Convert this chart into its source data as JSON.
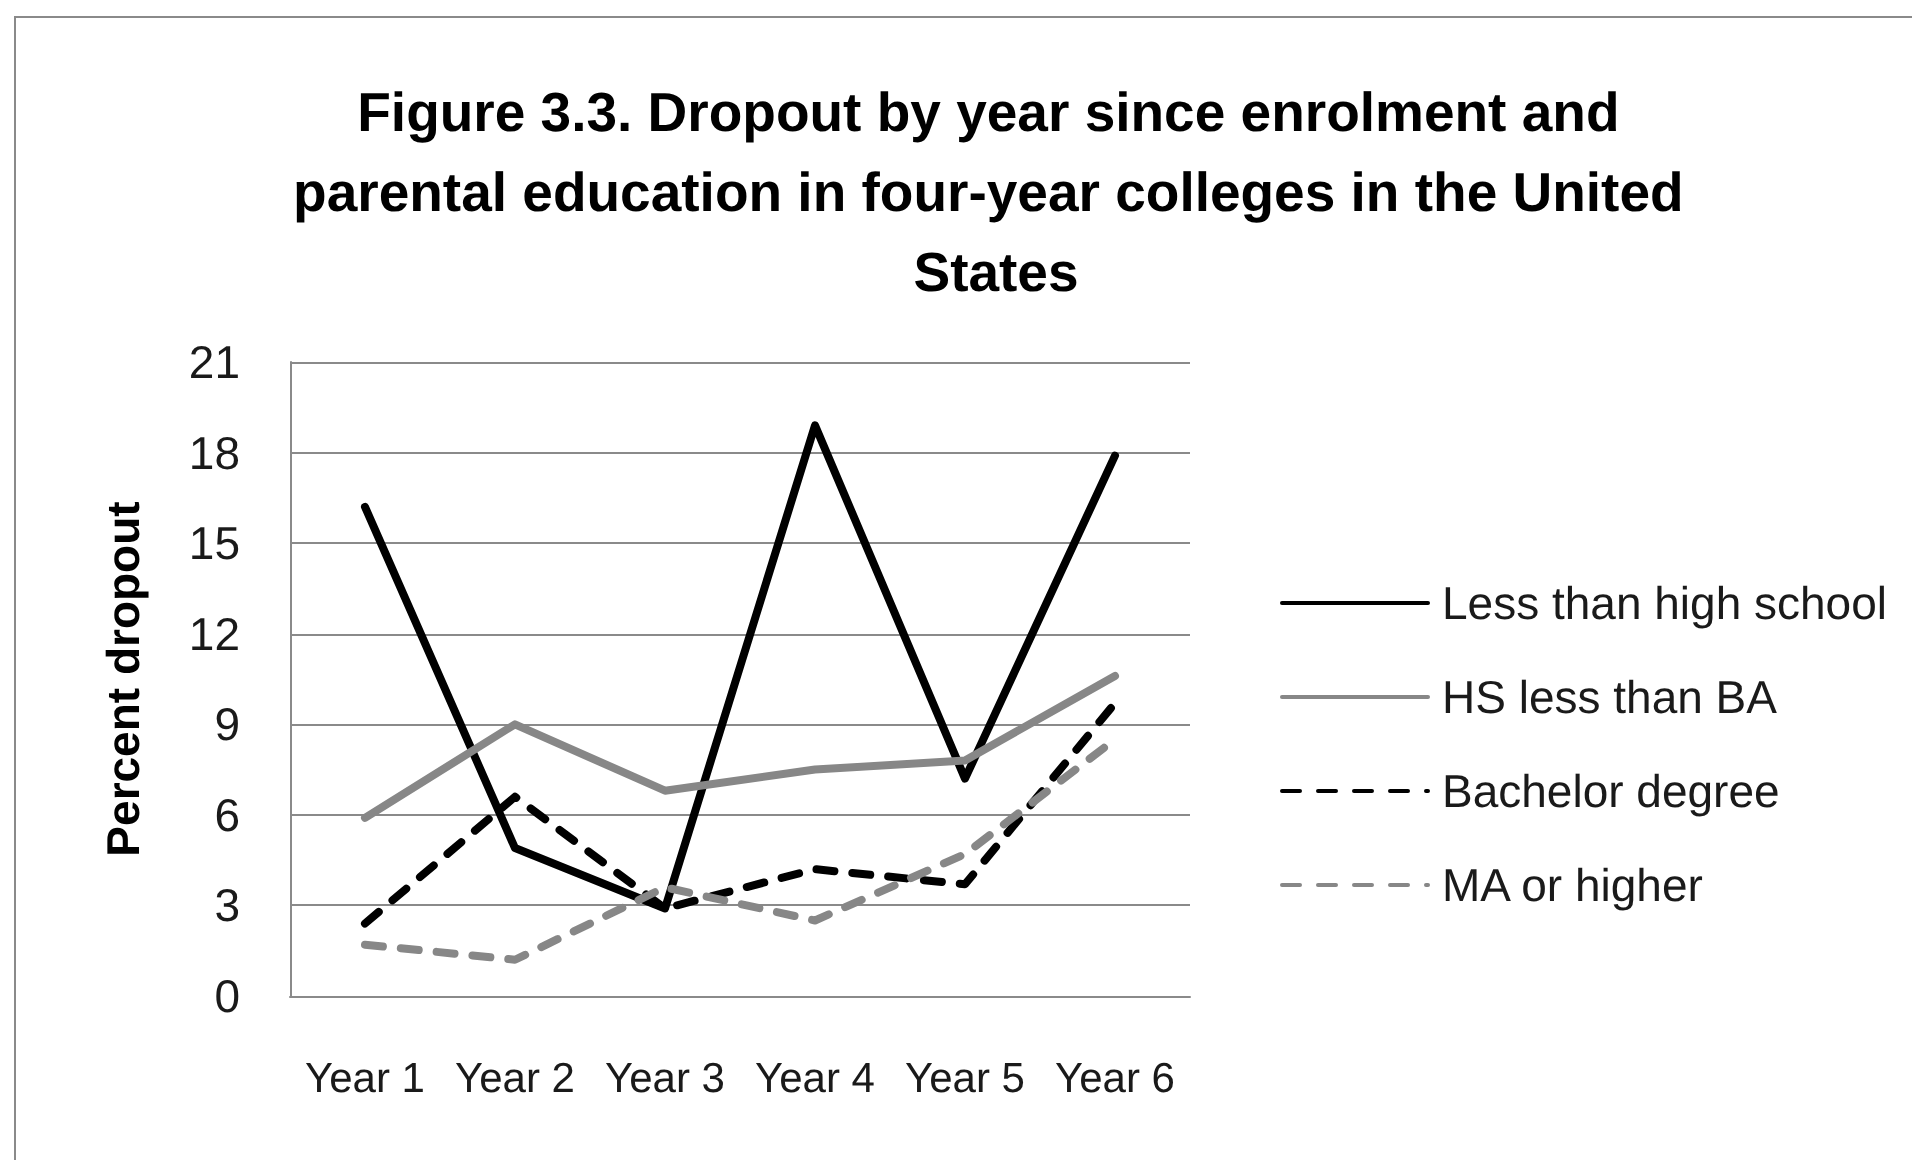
{
  "chart_data": {
    "type": "line",
    "title": "Figure 3.3. Dropout by year since enrolment and parental education in four-year colleges in the United States",
    "ylabel": "Percent dropout",
    "categories": [
      "Year 1",
      "Year 2",
      "Year 3",
      "Year 4",
      "Year 5",
      "Year 6"
    ],
    "series": [
      {
        "name": "Less than high school",
        "color": "#000000",
        "line_style": "solid",
        "values": [
          16.2,
          4.9,
          2.9,
          18.9,
          7.2,
          17.9
        ]
      },
      {
        "name": "HS less than BA",
        "color": "#878787",
        "line_style": "solid",
        "values": [
          5.9,
          9.0,
          6.8,
          7.5,
          7.8,
          10.6
        ]
      },
      {
        "name": "Bachelor degree",
        "color": "#000000",
        "line_style": "dashed",
        "values": [
          2.4,
          6.6,
          2.9,
          4.2,
          3.7,
          9.7
        ]
      },
      {
        "name": "MA or higher",
        "color": "#878787",
        "line_style": "dashed",
        "values": [
          1.7,
          1.2,
          3.6,
          2.5,
          4.7,
          8.5
        ]
      }
    ],
    "ylim": [
      0,
      21
    ],
    "yticks": [
      0,
      3,
      6,
      9,
      12,
      15,
      18,
      21
    ],
    "grid": "y",
    "legend": "right",
    "marker": "none"
  }
}
